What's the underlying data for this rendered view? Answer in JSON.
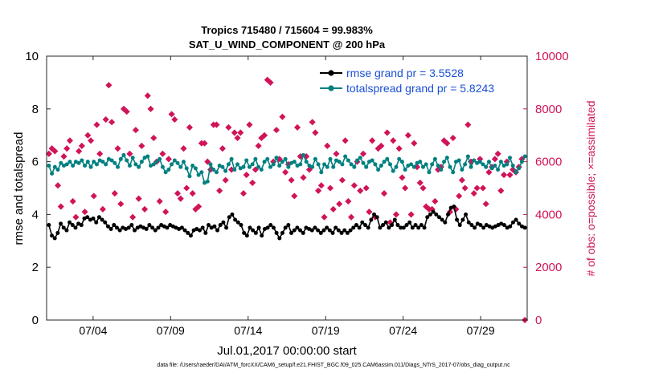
{
  "chart_data": {
    "type": "line",
    "title": "Tropics 715480 / 715604 = 99.983%",
    "subtitle": "SAT_U_WIND_COMPONENT @ 200 hPa",
    "xlabel": "Jul.01,2017 00:00:00 start",
    "ylabel_left": "rmse and totalspread",
    "ylabel_right": "# of obs: o=possible; ×=assimilated",
    "x_tick_labels": [
      "07/04",
      "07/09",
      "07/14",
      "07/19",
      "07/24",
      "07/29"
    ],
    "x_tick_days": [
      4,
      9,
      14,
      19,
      24,
      29
    ],
    "xlim_days": [
      1,
      32
    ],
    "ylim_left": [
      0,
      10
    ],
    "ylim_right": [
      0,
      10000
    ],
    "y_ticks_left": [
      "0",
      "2",
      "4",
      "6",
      "8",
      "10"
    ],
    "y_ticks_right": [
      "0",
      "2000",
      "4000",
      "6000",
      "8000",
      "10000"
    ],
    "legend": {
      "position": "top-right",
      "entries": [
        "rmse grand pr = 3.5528",
        "totalspread grand pr = 5.8243"
      ],
      "text_color": "#1a4fd6"
    },
    "colors": {
      "rmse": "#000000",
      "totalspread": "#008080",
      "obs": "#d1145a"
    },
    "series": [
      {
        "name": "rmse",
        "axis": "left",
        "values": [
          3.6,
          3.2,
          3.1,
          3.3,
          3.65,
          3.5,
          3.4,
          3.7,
          3.6,
          3.5,
          3.65,
          3.6,
          3.85,
          3.9,
          3.8,
          3.85,
          3.7,
          3.9,
          3.8,
          3.7,
          3.55,
          3.45,
          3.6,
          3.5,
          3.4,
          3.5,
          3.45,
          3.5,
          3.6,
          3.4,
          3.5,
          3.55,
          3.5,
          3.45,
          3.6,
          3.5,
          3.4,
          3.5,
          3.6,
          3.55,
          3.5,
          3.6,
          3.55,
          3.5,
          3.45,
          3.5,
          3.4,
          3.3,
          3.2,
          3.4,
          3.45,
          3.4,
          3.5,
          3.3,
          3.6,
          3.5,
          3.55,
          3.4,
          3.6,
          3.7,
          3.5,
          3.9,
          4.0,
          3.8,
          3.7,
          3.6,
          3.3,
          3.2,
          3.5,
          3.4,
          3.3,
          3.5,
          3.2,
          3.45,
          3.5,
          3.6,
          3.5,
          3.3,
          3.1,
          3.3,
          3.5,
          3.6,
          3.3,
          3.4,
          3.5,
          3.4,
          3.3,
          3.5,
          3.45,
          3.4,
          3.5,
          3.4,
          3.3,
          3.4,
          3.5,
          3.4,
          3.3,
          3.5,
          3.4,
          3.3,
          3.4,
          3.3,
          3.4,
          3.5,
          3.6,
          3.5,
          3.7,
          3.6,
          3.5,
          3.8,
          4.0,
          3.9,
          3.5,
          3.6,
          3.7,
          3.5,
          3.6,
          3.8,
          3.6,
          3.5,
          3.5,
          3.6,
          3.7,
          3.5,
          3.6,
          3.5,
          3.6,
          3.5,
          3.9,
          4.0,
          4.1,
          4.0,
          3.9,
          3.8,
          3.7,
          4.0,
          4.25,
          4.3,
          3.8,
          3.6,
          3.8,
          4.0,
          3.7,
          3.6,
          3.5,
          3.65,
          3.6,
          3.5,
          3.6,
          3.55,
          3.5,
          3.55,
          3.6,
          3.65,
          3.6,
          3.5,
          3.55,
          3.7,
          3.8,
          3.65,
          3.55,
          3.5
        ]
      },
      {
        "name": "totalspread",
        "axis": "left",
        "values": [
          5.85,
          5.55,
          5.8,
          5.7,
          5.95,
          5.85,
          5.9,
          6.0,
          5.85,
          6.0,
          5.95,
          6.05,
          5.85,
          6.0,
          5.8,
          6.0,
          5.9,
          6.05,
          6.0,
          5.9,
          6.1,
          6.05,
          5.95,
          5.8,
          6.1,
          6.25,
          6.05,
          5.85,
          6.15,
          5.9,
          5.8,
          6.0,
          6.15,
          6.2,
          5.85,
          5.9,
          6.0,
          6.1,
          5.8,
          5.6,
          5.7,
          5.9,
          6.05,
          5.95,
          5.8,
          6.0,
          5.75,
          5.45,
          5.85,
          5.75,
          5.5,
          5.6,
          5.2,
          5.25,
          5.9,
          5.7,
          5.6,
          5.85,
          5.8,
          5.65,
          5.9,
          6.1,
          5.7,
          5.9,
          5.75,
          5.8,
          6.05,
          5.8,
          5.9,
          6.1,
          5.8,
          5.7,
          6.0,
          6.1,
          5.8,
          5.9,
          6.15,
          5.85,
          6.0,
          6.1,
          5.8,
          5.95,
          6.0,
          5.85,
          5.9,
          6.25,
          6.0,
          5.85,
          5.8,
          6.1,
          5.9,
          5.6,
          5.9,
          5.8,
          6.1,
          5.8,
          6.05,
          6.0,
          5.9,
          6.2,
          6.05,
          5.9,
          5.8,
          6.05,
          6.15,
          5.95,
          5.8,
          6.0,
          6.05,
          5.9,
          5.7,
          5.85,
          6.0,
          6.1,
          5.9,
          5.65,
          5.8,
          6.1,
          6.0,
          5.7,
          5.85,
          5.9,
          5.8,
          5.95,
          6.0,
          5.8,
          5.9,
          5.6,
          5.9,
          6.1,
          5.85,
          5.7,
          6.0,
          6.15,
          5.8,
          5.6,
          6.0,
          6.05,
          5.7,
          5.9,
          6.2,
          5.8,
          6.05,
          5.95,
          6.0,
          5.9,
          5.8,
          6.0,
          5.75,
          5.85,
          5.7,
          6.0,
          5.85,
          5.9,
          6.15,
          5.85,
          5.6,
          5.75,
          6.0,
          6.2
        ]
      },
      {
        "name": "obs",
        "axis": "right",
        "values": [
          6300,
          6500,
          6400,
          5100,
          4300,
          6200,
          6500,
          6800,
          4500,
          3900,
          6400,
          6600,
          4100,
          7000,
          6800,
          4700,
          7400,
          6300,
          4200,
          7600,
          8900,
          7500,
          4800,
          6500,
          4400,
          8000,
          7900,
          6300,
          3900,
          7200,
          4600,
          6600,
          4200,
          8500,
          8000,
          6900,
          6000,
          4500,
          6300,
          4100,
          6100,
          7800,
          7600,
          4800,
          4600,
          6500,
          5000,
          7300,
          4800,
          4200,
          4300,
          6700,
          6700,
          6000,
          5700,
          7400,
          7400,
          4900,
          6500,
          5300,
          7300,
          5700,
          7100,
          6900,
          7100,
          4800,
          5500,
          7400,
          5200,
          5700,
          6600,
          6900,
          7000,
          9100,
          9000,
          6000,
          7200,
          6100,
          7700,
          5600,
          5900,
          5300,
          4700,
          7300,
          6200,
          5400,
          6200,
          5700,
          7500,
          7100,
          4900,
          5100,
          3900,
          6600,
          5000,
          4200,
          6300,
          4400,
          5300,
          6800,
          4500,
          3900,
          5100,
          6000,
          4900,
          6300,
          5000,
          4100,
          6800,
          3900,
          6500,
          6600,
          4800,
          7100,
          3700,
          6800,
          4000,
          6500,
          5400,
          5000,
          7000,
          4000,
          6700,
          5800,
          5200,
          5000,
          4300,
          4200,
          4200,
          4500,
          5700,
          5800,
          6800,
          6700,
          4100,
          6900,
          4200,
          4700,
          5300,
          5000,
          7400,
          6000,
          4800,
          5000,
          6100,
          5000,
          4400,
          5600,
          5800,
          6100,
          6300,
          4900,
          5500,
          6000,
          5500,
          5700,
          5600,
          5800,
          6100,
          0
        ]
      }
    ]
  },
  "footer": "data file: /Users/raeder/DAI/ATM_forcXX/CAM6_setup/f.e21.FHIST_BGC.f09_025.CAM6assim.011/Diags_NTrS_2017-07/obs_diag_output.nc"
}
